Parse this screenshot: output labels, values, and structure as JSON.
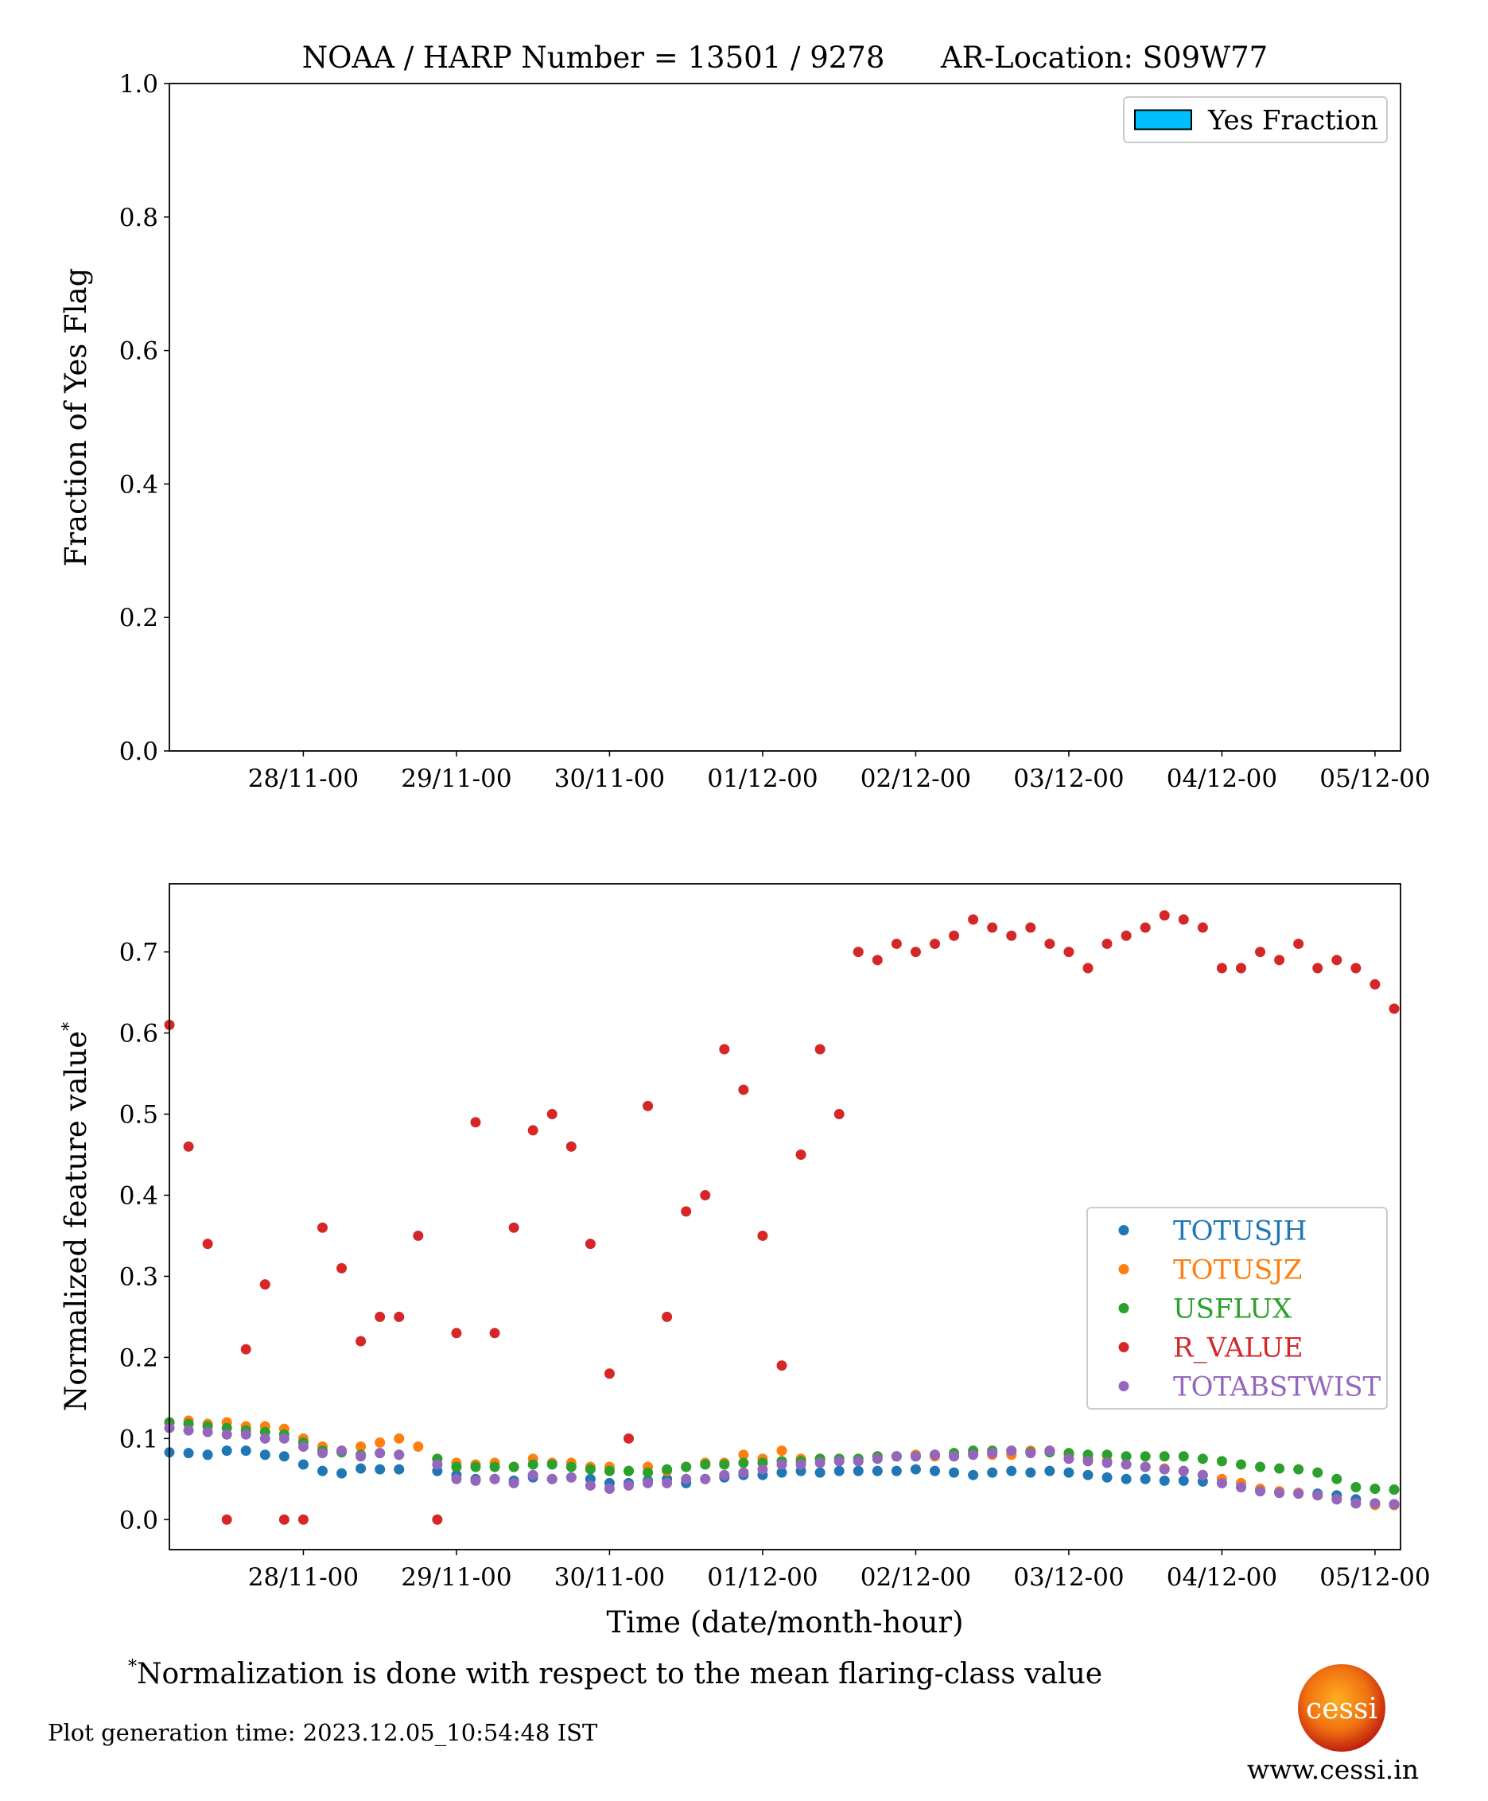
{
  "chart_data": [
    {
      "type": "bar",
      "title": "NOAA / HARP Number = 13501 / 9278      AR-Location: S09W77",
      "ylabel": "Fraction of Yes Flag",
      "x": [],
      "series": [
        {
          "name": "Yes Fraction",
          "color": "#00bfff",
          "values": []
        }
      ],
      "xlim": [
        "27/11-03",
        "05/12-04"
      ],
      "xticks": [
        "28/11-00",
        "29/11-00",
        "30/11-00",
        "01/12-00",
        "02/12-00",
        "03/12-00",
        "04/12-00",
        "05/12-00"
      ],
      "ylim": [
        0,
        1
      ],
      "yticks": [
        {
          "value": 0,
          "label": "0.0"
        },
        {
          "value": 0.2,
          "label": "0.2"
        },
        {
          "value": 0.4,
          "label": "0.4"
        },
        {
          "value": 0.6,
          "label": "0.6"
        },
        {
          "value": 0.8,
          "label": "0.8"
        },
        {
          "value": 1,
          "label": "1.0"
        }
      ],
      "legend": "upper right"
    },
    {
      "type": "scatter",
      "ylabel": "Normalized feature value",
      "ylabel_mark": "*",
      "xlabel": "Time (date/month-hour)",
      "x": [
        "27/11-03",
        "27/11-06",
        "27/11-09",
        "27/11-12",
        "27/11-15",
        "27/11-18",
        "27/11-21",
        "28/11-00",
        "28/11-03",
        "28/11-06",
        "28/11-09",
        "28/11-12",
        "28/11-15",
        "28/11-18",
        "28/11-21",
        "29/11-00",
        "29/11-03",
        "29/11-06",
        "29/11-09",
        "29/11-12",
        "29/11-15",
        "29/11-18",
        "29/11-21",
        "30/11-00",
        "30/11-03",
        "30/11-06",
        "30/11-09",
        "30/11-12",
        "30/11-15",
        "30/11-18",
        "30/11-21",
        "01/12-00",
        "01/12-03",
        "01/12-06",
        "01/12-09",
        "01/12-12",
        "01/12-15",
        "01/12-18",
        "01/12-21",
        "02/12-00",
        "02/12-03",
        "02/12-06",
        "02/12-09",
        "02/12-12",
        "02/12-15",
        "02/12-18",
        "02/12-21",
        "03/12-00",
        "03/12-03",
        "03/12-06",
        "03/12-09",
        "03/12-12",
        "03/12-15",
        "03/12-18",
        "03/12-21",
        "04/12-00",
        "04/12-03",
        "04/12-06",
        "04/12-09",
        "04/12-12",
        "04/12-15",
        "04/12-18",
        "04/12-21",
        "05/12-00",
        "05/12-03"
      ],
      "series": [
        {
          "name": "TOTUSJH",
          "color": "#1f77b4",
          "values": [
            0.083,
            0.082,
            0.08,
            0.085,
            0.085,
            0.08,
            0.078,
            0.068,
            0.06,
            0.057,
            0.063,
            0.062,
            0.062,
            null,
            0.06,
            0.055,
            0.05,
            0.05,
            0.048,
            0.052,
            0.05,
            0.052,
            0.05,
            0.045,
            0.045,
            0.048,
            0.05,
            0.045,
            0.05,
            0.052,
            0.055,
            0.055,
            0.058,
            0.06,
            0.058,
            0.06,
            0.06,
            0.06,
            0.06,
            0.062,
            0.06,
            0.058,
            0.055,
            0.058,
            0.06,
            0.058,
            0.06,
            0.058,
            0.055,
            0.052,
            0.05,
            0.05,
            0.048,
            0.048,
            0.047,
            0.045,
            0.04,
            0.036,
            0.033,
            0.033,
            0.032,
            0.03,
            0.025,
            0.02,
            0.018
          ]
        },
        {
          "name": "TOTUSJZ",
          "color": "#ff7f0e",
          "values": [
            0.12,
            0.122,
            0.118,
            0.12,
            0.115,
            0.115,
            0.112,
            0.1,
            0.09,
            0.085,
            0.09,
            0.095,
            0.1,
            0.09,
            0.075,
            0.07,
            0.068,
            0.07,
            0.065,
            0.075,
            0.07,
            0.07,
            0.065,
            0.065,
            0.06,
            0.065,
            0.06,
            0.065,
            0.07,
            0.07,
            0.08,
            0.075,
            0.085,
            0.075,
            0.075,
            0.075,
            0.075,
            0.078,
            0.078,
            0.08,
            0.078,
            0.078,
            0.082,
            0.08,
            0.08,
            0.085,
            0.085,
            0.08,
            0.075,
            0.072,
            0.068,
            0.065,
            0.063,
            0.06,
            0.055,
            0.05,
            0.045,
            0.038,
            0.035,
            0.033,
            0.03,
            0.025,
            0.02,
            0.018,
            0.018
          ]
        },
        {
          "name": "USFLUX",
          "color": "#2ca02c",
          "values": [
            0.12,
            0.118,
            0.115,
            0.113,
            0.11,
            0.108,
            0.105,
            0.095,
            0.085,
            0.083,
            0.08,
            0.082,
            0.08,
            null,
            0.075,
            0.065,
            0.065,
            0.065,
            0.065,
            0.068,
            0.068,
            0.065,
            0.062,
            0.06,
            0.06,
            0.058,
            0.062,
            0.065,
            0.068,
            0.068,
            0.07,
            0.07,
            0.072,
            0.072,
            0.075,
            0.075,
            0.075,
            0.078,
            0.078,
            0.078,
            0.08,
            0.082,
            0.085,
            0.085,
            0.085,
            0.083,
            0.083,
            0.082,
            0.08,
            0.08,
            0.078,
            0.078,
            0.078,
            0.078,
            0.075,
            0.072,
            0.068,
            0.065,
            0.063,
            0.062,
            0.058,
            0.05,
            0.04,
            0.038,
            0.037
          ]
        },
        {
          "name": "R_VALUE",
          "color": "#d62728",
          "values": [
            0.61,
            0.46,
            0.34,
            0.0,
            0.21,
            0.29,
            0.0,
            0.0,
            0.36,
            0.31,
            0.22,
            0.25,
            0.25,
            0.35,
            0.0,
            0.23,
            0.49,
            0.23,
            0.36,
            0.48,
            0.5,
            0.46,
            0.34,
            0.18,
            0.1,
            0.51,
            0.25,
            0.38,
            0.4,
            0.58,
            0.53,
            0.35,
            0.19,
            0.45,
            0.58,
            0.5,
            0.7,
            0.69,
            0.71,
            0.7,
            0.71,
            0.72,
            0.74,
            0.73,
            0.72,
            0.73,
            0.71,
            0.7,
            0.68,
            0.71,
            0.72,
            0.73,
            0.745,
            0.74,
            0.73,
            0.68,
            0.68,
            0.7,
            0.69,
            0.71,
            0.68,
            0.69,
            0.68,
            0.66,
            0.63
          ]
        },
        {
          "name": "TOTABSTWIST",
          "color": "#9467bd",
          "values": [
            0.113,
            0.11,
            0.108,
            0.105,
            0.105,
            0.1,
            0.1,
            0.09,
            0.082,
            0.085,
            0.078,
            0.082,
            0.08,
            null,
            0.068,
            0.05,
            0.048,
            0.05,
            0.045,
            0.055,
            0.05,
            0.052,
            0.042,
            0.038,
            0.042,
            0.045,
            0.045,
            0.05,
            0.05,
            0.055,
            0.058,
            0.062,
            0.068,
            0.068,
            0.07,
            0.072,
            0.072,
            0.075,
            0.078,
            0.078,
            0.08,
            0.078,
            0.08,
            0.082,
            0.085,
            0.082,
            0.085,
            0.075,
            0.072,
            0.07,
            0.068,
            0.065,
            0.062,
            0.06,
            0.055,
            0.045,
            0.04,
            0.035,
            0.033,
            0.032,
            0.03,
            0.025,
            0.02,
            0.02,
            0.019
          ]
        }
      ],
      "xlim": [
        "27/11-03",
        "05/12-04"
      ],
      "xticks": [
        "28/11-00",
        "29/11-00",
        "30/11-00",
        "01/12-00",
        "02/12-00",
        "03/12-00",
        "04/12-00",
        "05/12-00"
      ],
      "ylim": [
        -0.037,
        0.784
      ],
      "yticks": [
        {
          "value": 0,
          "label": "0.0"
        },
        {
          "value": 0.1,
          "label": "0.1"
        },
        {
          "value": 0.2,
          "label": "0.2"
        },
        {
          "value": 0.3,
          "label": "0.3"
        },
        {
          "value": 0.4,
          "label": "0.4"
        },
        {
          "value": 0.5,
          "label": "0.5"
        },
        {
          "value": 0.6,
          "label": "0.6"
        },
        {
          "value": 0.7,
          "label": "0.7"
        }
      ],
      "legend": "center right"
    }
  ],
  "footnote": {
    "mark": "*",
    "text": "Normalization is done with respect to the mean flaring-class value"
  },
  "generation_time": "Plot generation time: 2023.12.05_10:54:48 IST",
  "logo": {
    "text": "cessi",
    "url": "www.cessi.in"
  }
}
